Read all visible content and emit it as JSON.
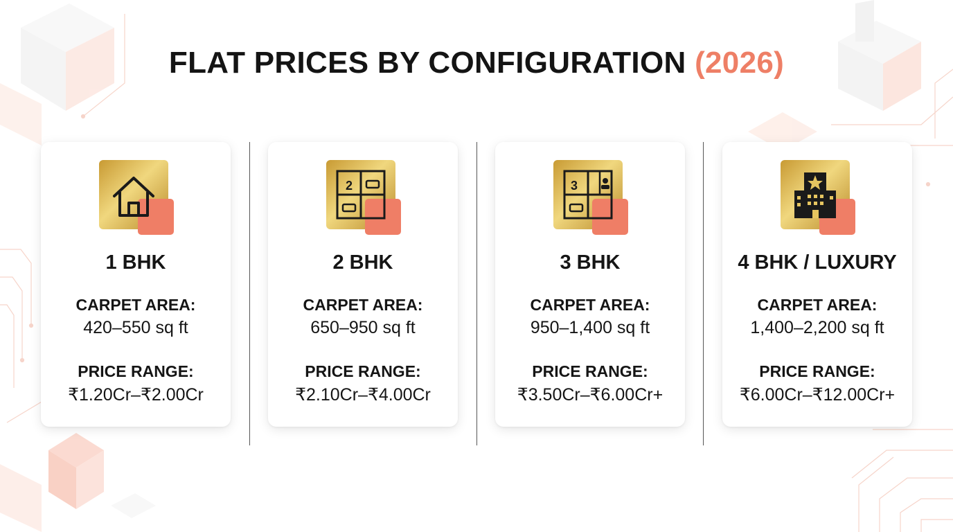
{
  "title": {
    "main": "FLAT PRICES BY CONFIGURATION",
    "year": "(2026)"
  },
  "colors": {
    "accent": "#ee7f66",
    "gold": "#d4a93c",
    "text": "#141414",
    "card_bg": "#ffffff"
  },
  "cards": [
    {
      "icon": "house-icon",
      "config": "1 BHK",
      "area_label": "CARPET AREA:",
      "area_value": "420–550 sq ft",
      "price_label": "PRICE RANGE:",
      "price_value": "₹1.20Cr–₹2.00Cr"
    },
    {
      "icon": "floorplan-2-icon",
      "icon_number": "2",
      "config": "2 BHK",
      "area_label": "CARPET AREA:",
      "area_value": "650–950 sq ft",
      "price_label": "PRICE RANGE:",
      "price_value": "₹2.10Cr–₹4.00Cr"
    },
    {
      "icon": "floorplan-3-icon",
      "icon_number": "3",
      "config": "3 BHK",
      "area_label": "CARPET AREA:",
      "area_value": "950–1,400 sq ft",
      "price_label": "PRICE RANGE:",
      "price_value": "₹3.50Cr–₹6.00Cr+"
    },
    {
      "icon": "luxury-building-icon",
      "config": "4 BHK / LUXURY",
      "area_label": "CARPET AREA:",
      "area_value": "1,400–2,200 sq ft",
      "price_label": "PRICE RANGE:",
      "price_value": "₹6.00Cr–₹12.00Cr+"
    }
  ]
}
